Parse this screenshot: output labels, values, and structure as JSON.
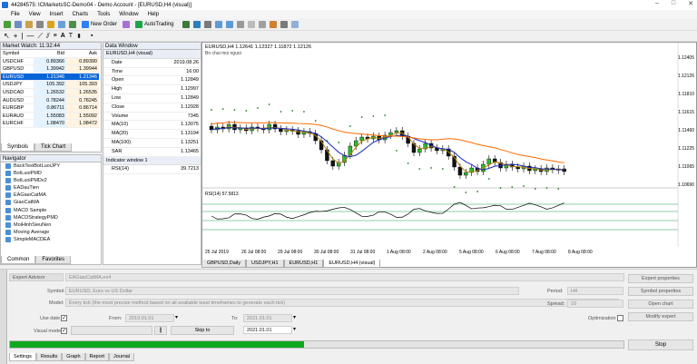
{
  "window": {
    "title": "44284575: ICMarketsSC-Demo04 - Demo Account - [EURUSD,H4 (visual)]",
    "controls": [
      "–",
      "□",
      "✕"
    ]
  },
  "menu": [
    "File",
    "View",
    "Insert",
    "Charts",
    "Tools",
    "Window",
    "Help"
  ],
  "toolbar": {
    "new_order": "New Order",
    "autotrading": "AutoTrading"
  },
  "market_watch": {
    "title": "Market Watch: 11:32:44",
    "headers": [
      "Symbol",
      "Bid",
      "Ask"
    ],
    "rows": [
      {
        "symbol": "USDCHF",
        "bid": "0.89366",
        "ask": "0.89390"
      },
      {
        "symbol": "GBPUSD",
        "bid": "1.39942",
        "ask": "1.39944"
      },
      {
        "symbol": "EURUSD",
        "bid": "1.21346",
        "ask": "1.21346"
      },
      {
        "symbol": "USDJPY",
        "bid": "105.392",
        "ask": "105.393"
      },
      {
        "symbol": "USDCAD",
        "bid": "1.26532",
        "ask": "1.26535"
      },
      {
        "symbol": "AUDUSD",
        "bid": "0.78244",
        "ask": "0.78245"
      },
      {
        "symbol": "EURGBP",
        "bid": "0.86711",
        "ask": "0.86714"
      },
      {
        "symbol": "EURAUD",
        "bid": "1.55083",
        "ask": "1.55092"
      },
      {
        "symbol": "EURCHF",
        "bid": "1.08470",
        "ask": "1.08472"
      }
    ],
    "selected_index": 2,
    "tabs": [
      "Symbols",
      "Tick Chart"
    ]
  },
  "navigator": {
    "title": "Navigator",
    "items": [
      "BackTestBotLuoiJPY",
      "BotLuoiPMD",
      "BotLuoiPMDv2",
      "EADauTien",
      "EAGiaoCatMA",
      "GiaoCatMA",
      "MACD Sample",
      "MACDStrategyPMD",
      "MoiHinhSieuNen",
      "Moving Average",
      "SimpleMACDEA"
    ],
    "tabs": [
      "Common",
      "Favorites"
    ]
  },
  "data_window": {
    "title": "Data Window",
    "section1": "EURUSD,H4 (visual)",
    "rows": [
      {
        "k": "Date",
        "v": "2019.08.26"
      },
      {
        "k": "Time",
        "v": "16:00"
      },
      {
        "k": "Open",
        "v": "1.12849"
      },
      {
        "k": "High",
        "v": "1.12997"
      },
      {
        "k": "Low",
        "v": "1.12849"
      },
      {
        "k": "Close",
        "v": "1.12928"
      },
      {
        "k": "Volume",
        "v": "7345"
      },
      {
        "k": "MA(10)",
        "v": "1.13075"
      },
      {
        "k": "MA(20)",
        "v": "1.13194"
      },
      {
        "k": "MA(100)",
        "v": "1.13251"
      },
      {
        "k": "SAR",
        "v": "1.13465"
      }
    ],
    "section2": "Indicator window 1",
    "rows2": [
      {
        "k": "RSI(14)",
        "v": "39.7213"
      }
    ]
  },
  "chart": {
    "header": "EURUSD,H4  1.12641 1.12327 1.11872 1.12126",
    "subheader": "Bn chai moi nguoi",
    "price_labels": [
      "1.12405",
      "1.12126",
      "1.11810",
      "1.11615",
      "1.11460",
      "1.11225",
      "1.11065",
      "1.10690"
    ],
    "rsi_header": "RSI(14) 57.5813",
    "date_labels": [
      "25 Jul 2019",
      "26 Jul 08:00",
      "29 Jul 08:00",
      "30 Jul 08:00",
      "31 Jul 08:00",
      "1 Aug 08:00",
      "2 Aug 08:00",
      "5 Aug 08:00",
      "6 Aug 08:00",
      "7 Aug 08:00",
      "8 Aug 08:00"
    ],
    "tabs": [
      "GBPUSD,Daily",
      "USDJPY,H1",
      "EURUSD,H1",
      "EURUSD,H4 (visual)"
    ],
    "active_tab": 3
  },
  "tester": {
    "expert_label": "Expert Advisor",
    "expert_value": "EAGiaoCatMA.ex4",
    "symbol_label": "Symbol:",
    "symbol_value": "EURUSD, Euro vs US Dollar",
    "model_label": "Model:",
    "model_value": "Every tick (the most precise method based on all available least timeframes to generate each tick)",
    "use_date_label": "Use date",
    "from_label": "From:",
    "from_value": "2019.01.01",
    "to_label": "To:",
    "to_value": "2021.01.01",
    "visual_mode_label": "Visual mode",
    "skip_to": "Skip to",
    "skip_date": "2021.01.01",
    "period_label": "Period:",
    "period_value": "H4",
    "spread_label": "Spread:",
    "spread_value": "10",
    "optimization_label": "Optimization",
    "buttons": [
      "Expert properties",
      "Symbol properties",
      "Open chart",
      "Modify expert"
    ],
    "stop_label": "Stop",
    "progress": 0.48,
    "tabs": [
      "Settings",
      "Results",
      "Graph",
      "Report",
      "Journal"
    ]
  },
  "colors": {
    "accent": "#0a64d8",
    "progress": "#10a821",
    "ma100": "#ff6a00",
    "ma20": "#1a2ab8",
    "ma10": "#b8860b",
    "sar": "#1f7a1f"
  }
}
